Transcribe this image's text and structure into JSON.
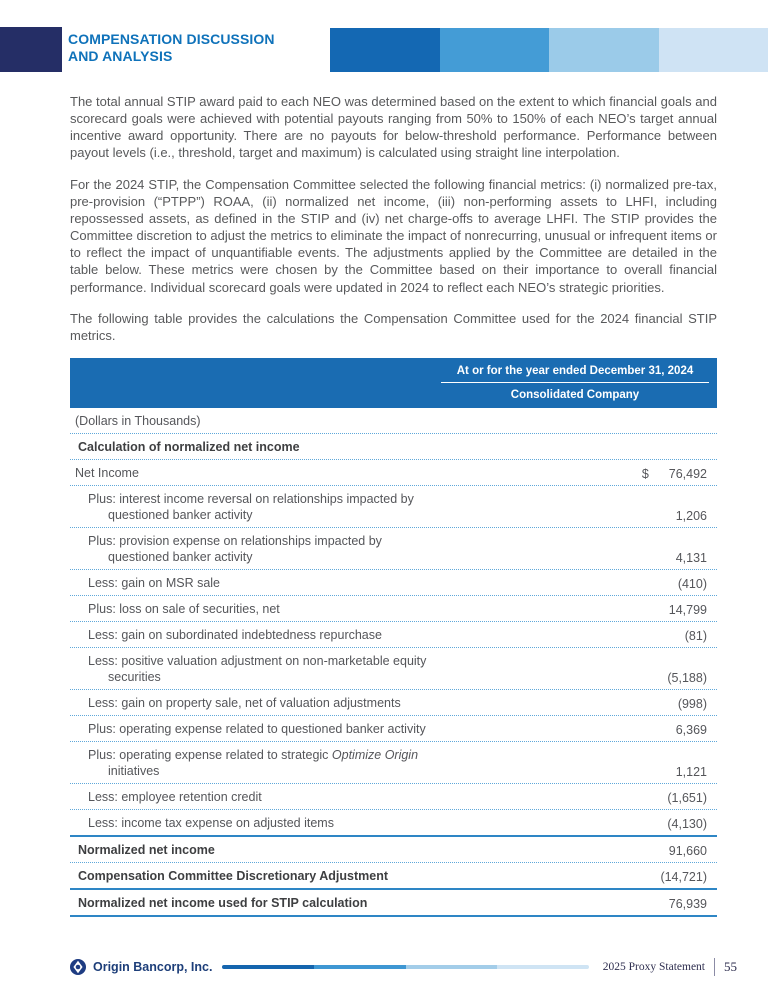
{
  "header": {
    "title_line1": "COMPENSATION DISCUSSION",
    "title_line2": "AND ANALYSIS",
    "title_color": "#0F72BA",
    "navy": "#252E66",
    "accent_colors": [
      "#1468B3",
      "#449CD6",
      "#9BCBE9",
      "#CFE3F4"
    ]
  },
  "paragraphs": [
    "The total annual STIP award paid to each NEO was determined based on the extent to which financial goals and scorecard goals were achieved with potential payouts ranging from 50% to 150% of each NEO’s target annual incentive award opportunity. There are no payouts for below-threshold performance. Performance between payout levels (i.e., threshold, target and maximum) is calculated using straight line interpolation.",
    "For the 2024 STIP, the Compensation Committee selected the following financial metrics: (i) normalized pre-tax, pre-provision (“PTPP”) ROAA, (ii) normalized net income, (iii) non-performing assets to LHFI, including repossessed assets, as defined in the STIP and (iv) net charge-offs to average LHFI. The STIP provides the Committee discretion to adjust the metrics to eliminate the impact of nonrecurring, unusual or infrequent items or to reflect the impact of unquantifiable events. The adjustments applied by the Committee are detailed in the table below. These metrics were chosen by the Committee based on their importance to overall financial performance. Individual scorecard goals were updated in 2024 to reflect each NEO’s strategic priorities.",
    "The following table provides the calculations the Compensation Committee used for the 2024 financial STIP metrics."
  ],
  "table": {
    "header": {
      "bg": "#1A6CB2",
      "line1": "At or for the year ended December 31, 2024",
      "line2": "Consolidated Company"
    },
    "rows": [
      {
        "style": "plain",
        "line1": "(Dollars in Thousands)",
        "value": "",
        "sep": "dotted"
      },
      {
        "style": "bold",
        "line1": "Calculation of normalized net income",
        "value": "",
        "sep": "dotted"
      },
      {
        "style": "plain",
        "line1": "Net Income",
        "dollar": "$",
        "value": "76,492",
        "sep": "dotted"
      },
      {
        "style": "indent",
        "line1": "Plus: interest income reversal on relationships impacted by",
        "line2": "questioned banker activity",
        "value": "1,206",
        "sep": "dotted"
      },
      {
        "style": "indent",
        "line1": "Plus: provision expense on relationships impacted by",
        "line2": "questioned banker activity",
        "value": "4,131",
        "sep": "dotted"
      },
      {
        "style": "indent",
        "line1": "Less: gain on MSR sale",
        "value": "(410)",
        "sep": "dotted"
      },
      {
        "style": "indent",
        "line1": "Plus: loss on sale of securities, net",
        "value": "14,799",
        "sep": "dotted"
      },
      {
        "style": "indent",
        "line1": "Less: gain on subordinated indebtedness repurchase",
        "value": "(81)",
        "sep": "dotted"
      },
      {
        "style": "indent",
        "line1": "Less: positive valuation adjustment on non-marketable equity",
        "line2": "securities",
        "value": "(5,188)",
        "sep": "dotted"
      },
      {
        "style": "indent",
        "line1": "Less: gain on property sale, net of valuation adjustments",
        "value": "(998)",
        "sep": "dotted"
      },
      {
        "style": "indent",
        "line1": "Plus: operating expense related to questioned banker activity",
        "value": "6,369",
        "sep": "dotted"
      },
      {
        "style": "indent",
        "line1": "Plus: operating expense related to strategic ",
        "line1_italic": "Optimize Origin",
        "line2": "initiatives",
        "value": "1,121",
        "sep": "dotted"
      },
      {
        "style": "indent",
        "line1": "Less: employee retention credit",
        "value": "(1,651)",
        "sep": "dotted"
      },
      {
        "style": "indent",
        "line1": "Less: income tax expense on adjusted items",
        "value": "(4,130)",
        "sep": "solid"
      },
      {
        "style": "bold",
        "line1": "Normalized net income",
        "value": "91,660",
        "sep": "dotted"
      },
      {
        "style": "bold",
        "line1": "Compensation Committee Discretionary Adjustment",
        "value": "(14,721)",
        "sep": "solid"
      },
      {
        "style": "bold",
        "line1": "Normalized net income used for STIP calculation",
        "value": "76,939",
        "sep": "solid"
      }
    ]
  },
  "footer": {
    "company": "Origin Bancorp, Inc.",
    "doc": "2025 Proxy Statement",
    "page": "55",
    "bar_colors": [
      "#1565AE",
      "#3E97D3",
      "#A3CDE9",
      "#CFE4F4"
    ],
    "logo_color": "#1E3C82"
  }
}
